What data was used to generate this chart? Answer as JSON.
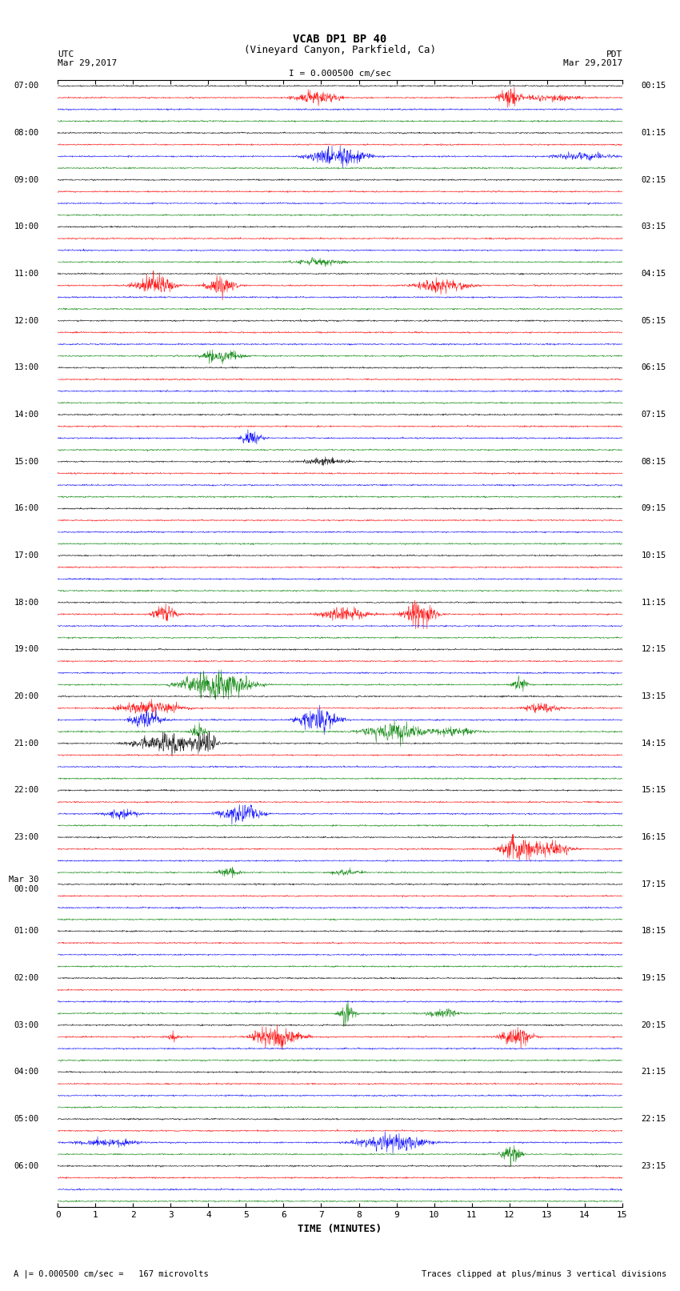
{
  "title_line1": "VCAB DP1 BP 40",
  "title_line2": "(Vineyard Canyon, Parkfield, Ca)",
  "scale_text": "I = 0.000500 cm/sec",
  "utc_label": "UTC",
  "utc_date": "Mar 29,2017",
  "pdt_label": "PDT",
  "pdt_date": "Mar 29,2017",
  "xlabel": "TIME (MINUTES)",
  "footer_left": "A |= 0.000500 cm/sec =   167 microvolts",
  "footer_right": "Traces clipped at plus/minus 3 vertical divisions",
  "colors": [
    "black",
    "red",
    "blue",
    "green"
  ],
  "background_color": "white",
  "utc_hour_labels": [
    "07:00",
    "08:00",
    "09:00",
    "10:00",
    "11:00",
    "12:00",
    "13:00",
    "14:00",
    "15:00",
    "16:00",
    "17:00",
    "18:00",
    "19:00",
    "20:00",
    "21:00",
    "22:00",
    "23:00",
    "Mar 30\n00:00",
    "01:00",
    "02:00",
    "03:00",
    "04:00",
    "05:00",
    "06:00"
  ],
  "pdt_hour_labels": [
    "00:15",
    "01:15",
    "02:15",
    "03:15",
    "04:15",
    "05:15",
    "06:15",
    "07:15",
    "08:15",
    "09:15",
    "10:15",
    "11:15",
    "12:15",
    "13:15",
    "14:15",
    "15:15",
    "16:15",
    "17:15",
    "18:15",
    "19:15",
    "20:15",
    "21:15",
    "22:15",
    "23:15"
  ],
  "total_hour_blocks": 24,
  "minutes": 15,
  "noise_seed": 42,
  "amp_scale": 0.42,
  "noise_level": 0.07,
  "event_prob": 0.3,
  "n_samples": 1800
}
